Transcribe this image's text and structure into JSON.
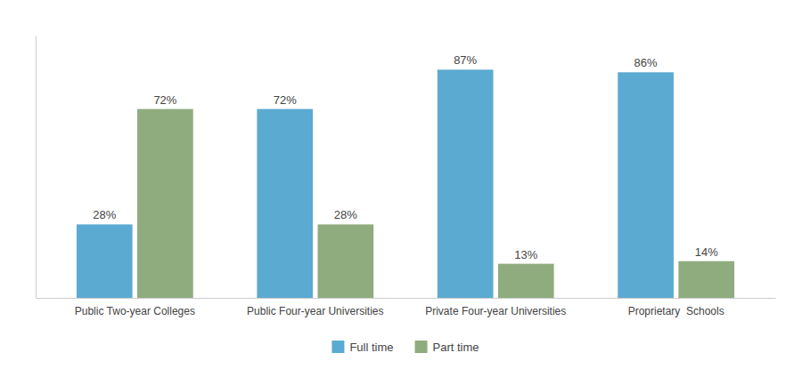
{
  "chart_data": {
    "type": "bar",
    "categories": [
      "Public Two-year Colleges",
      "Public Four-year Universities",
      "Private Four-year Universities",
      "Proprietary  Schools"
    ],
    "series": [
      {
        "name": "Full time",
        "color": "#5baad1",
        "values": [
          28,
          72,
          87,
          86
        ],
        "value_labels": [
          "28%",
          "72%",
          "87%",
          "86%"
        ]
      },
      {
        "name": "Part time",
        "color": "#8fac7e",
        "values": [
          72,
          28,
          13,
          14
        ],
        "value_labels": [
          "72%",
          "28%",
          "13%",
          "14%"
        ]
      }
    ],
    "ylim": [
      0,
      100
    ],
    "grid": false,
    "legend": "bottom",
    "data_labels": true,
    "tick_labels": "x"
  }
}
